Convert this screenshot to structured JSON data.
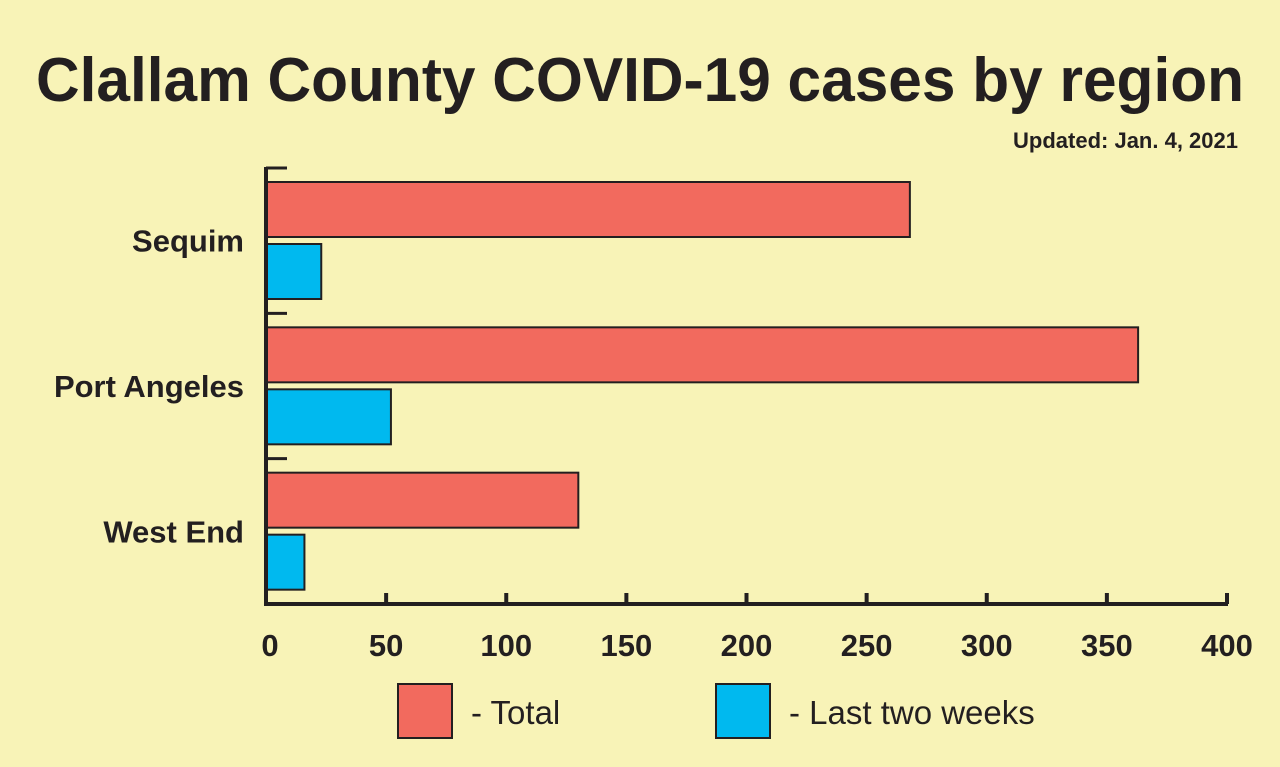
{
  "chart_data": {
    "type": "bar",
    "orientation": "horizontal",
    "title": "Clallam County COVID-19 cases by region",
    "subtitle": "Updated: Jan. 4, 2021",
    "categories": [
      "Sequim",
      "Port Angeles",
      "West End"
    ],
    "series": [
      {
        "name": "- Total",
        "color": "#f26a5e",
        "values": [
          268,
          363,
          130
        ]
      },
      {
        "name": "- Last two weeks",
        "color": "#00b9ef",
        "values": [
          23,
          52,
          16
        ]
      }
    ],
    "xlim": [
      0,
      400
    ],
    "xticks": [
      0,
      50,
      100,
      150,
      200,
      250,
      300,
      350,
      400
    ],
    "xlabel": "",
    "ylabel": "",
    "grid": false,
    "legend": "bottom"
  }
}
